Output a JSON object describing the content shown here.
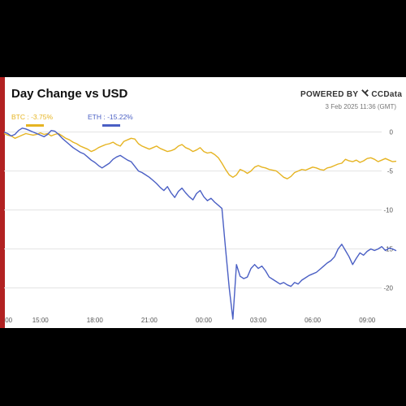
{
  "chart": {
    "title": "Day Change vs USD",
    "powered_by": "POWERED BY",
    "brand": "CCData",
    "timestamp": "3 Feb 2025 11:36 (GMT)"
  },
  "colors": {
    "btc": "#e6b422",
    "eth": "#4a5fc4",
    "accent": "#b22222"
  },
  "chart_data": {
    "type": "line",
    "title": "Day Change vs USD",
    "xlabel": "",
    "ylabel": "",
    "x_ticks": [
      ":00",
      "15:00",
      "18:00",
      "21:00",
      "00:00",
      "03:00",
      "06:00",
      "09:00"
    ],
    "y_ticks": [
      0,
      -5,
      -10,
      -15,
      -20
    ],
    "ylim": [
      -24,
      1
    ],
    "grid": true,
    "legend": "top-left",
    "series": [
      {
        "name": "BTC : -3.75%",
        "color": "#e6b422",
        "points": [
          [
            13.0,
            -0.2
          ],
          [
            13.2,
            -0.4
          ],
          [
            13.4,
            -0.5
          ],
          [
            13.6,
            -0.8
          ],
          [
            13.8,
            -0.6
          ],
          [
            14.0,
            -0.4
          ],
          [
            14.2,
            -0.2
          ],
          [
            14.4,
            -0.3
          ],
          [
            14.6,
            -0.4
          ],
          [
            14.8,
            -0.3
          ],
          [
            15.0,
            -0.1
          ],
          [
            15.2,
            -0.3
          ],
          [
            15.4,
            -0.2
          ],
          [
            15.6,
            -0.5
          ],
          [
            15.8,
            -0.3
          ],
          [
            16.0,
            -0.2
          ],
          [
            16.2,
            -0.5
          ],
          [
            16.4,
            -0.8
          ],
          [
            16.6,
            -1.0
          ],
          [
            16.8,
            -1.3
          ],
          [
            17.0,
            -1.5
          ],
          [
            17.2,
            -1.8
          ],
          [
            17.4,
            -2.0
          ],
          [
            17.6,
            -2.2
          ],
          [
            17.8,
            -2.5
          ],
          [
            18.0,
            -2.3
          ],
          [
            18.2,
            -2.0
          ],
          [
            18.4,
            -1.8
          ],
          [
            18.6,
            -1.6
          ],
          [
            18.8,
            -1.5
          ],
          [
            19.0,
            -1.3
          ],
          [
            19.2,
            -1.6
          ],
          [
            19.4,
            -1.8
          ],
          [
            19.6,
            -1.2
          ],
          [
            19.8,
            -1.0
          ],
          [
            20.0,
            -0.8
          ],
          [
            20.2,
            -0.9
          ],
          [
            20.4,
            -1.5
          ],
          [
            20.6,
            -1.8
          ],
          [
            20.8,
            -2.0
          ],
          [
            21.0,
            -2.2
          ],
          [
            21.2,
            -2.0
          ],
          [
            21.4,
            -1.8
          ],
          [
            21.6,
            -2.1
          ],
          [
            21.8,
            -2.3
          ],
          [
            22.0,
            -2.5
          ],
          [
            22.2,
            -2.4
          ],
          [
            22.4,
            -2.2
          ],
          [
            22.6,
            -1.8
          ],
          [
            22.8,
            -1.6
          ],
          [
            23.0,
            -2.0
          ],
          [
            23.2,
            -2.2
          ],
          [
            23.4,
            -2.5
          ],
          [
            23.6,
            -2.3
          ],
          [
            23.8,
            -2.0
          ],
          [
            24.0,
            -2.5
          ],
          [
            24.2,
            -2.7
          ],
          [
            24.4,
            -2.6
          ],
          [
            24.6,
            -2.9
          ],
          [
            24.8,
            -3.3
          ],
          [
            25.0,
            -4.0
          ],
          [
            25.2,
            -4.8
          ],
          [
            25.4,
            -5.5
          ],
          [
            25.6,
            -5.8
          ],
          [
            25.8,
            -5.5
          ],
          [
            26.0,
            -4.8
          ],
          [
            26.2,
            -5.0
          ],
          [
            26.4,
            -5.3
          ],
          [
            26.6,
            -5.0
          ],
          [
            26.8,
            -4.5
          ],
          [
            27.0,
            -4.3
          ],
          [
            27.2,
            -4.5
          ],
          [
            27.4,
            -4.6
          ],
          [
            27.6,
            -4.8
          ],
          [
            27.8,
            -4.9
          ],
          [
            28.0,
            -5.0
          ],
          [
            28.2,
            -5.4
          ],
          [
            28.4,
            -5.8
          ],
          [
            28.6,
            -6.0
          ],
          [
            28.8,
            -5.7
          ],
          [
            29.0,
            -5.2
          ],
          [
            29.2,
            -5.0
          ],
          [
            29.4,
            -4.8
          ],
          [
            29.6,
            -4.9
          ],
          [
            29.8,
            -4.7
          ],
          [
            30.0,
            -4.5
          ],
          [
            30.2,
            -4.6
          ],
          [
            30.4,
            -4.8
          ],
          [
            30.6,
            -4.9
          ],
          [
            30.8,
            -4.6
          ],
          [
            31.0,
            -4.5
          ],
          [
            31.2,
            -4.3
          ],
          [
            31.4,
            -4.1
          ],
          [
            31.6,
            -4.0
          ],
          [
            31.8,
            -3.5
          ],
          [
            32.0,
            -3.7
          ],
          [
            32.2,
            -3.8
          ],
          [
            32.4,
            -3.6
          ],
          [
            32.6,
            -3.9
          ],
          [
            32.8,
            -3.7
          ],
          [
            33.0,
            -3.4
          ],
          [
            33.2,
            -3.3
          ],
          [
            33.4,
            -3.5
          ],
          [
            33.6,
            -3.8
          ],
          [
            33.8,
            -3.6
          ],
          [
            34.0,
            -3.4
          ],
          [
            34.2,
            -3.6
          ],
          [
            34.4,
            -3.8
          ],
          [
            34.6,
            -3.75
          ]
        ]
      },
      {
        "name": "ETH : -15.22%",
        "color": "#4a5fc4",
        "points": [
          [
            13.0,
            0.0
          ],
          [
            13.2,
            -0.2
          ],
          [
            13.4,
            -0.5
          ],
          [
            13.6,
            -0.3
          ],
          [
            13.8,
            0.2
          ],
          [
            14.0,
            0.5
          ],
          [
            14.2,
            0.4
          ],
          [
            14.4,
            0.2
          ],
          [
            14.6,
            0.0
          ],
          [
            14.8,
            -0.2
          ],
          [
            15.0,
            -0.4
          ],
          [
            15.2,
            -0.6
          ],
          [
            15.4,
            -0.3
          ],
          [
            15.6,
            0.2
          ],
          [
            15.8,
            0.1
          ],
          [
            16.0,
            -0.3
          ],
          [
            16.2,
            -0.8
          ],
          [
            16.4,
            -1.2
          ],
          [
            16.6,
            -1.6
          ],
          [
            16.8,
            -2.0
          ],
          [
            17.0,
            -2.3
          ],
          [
            17.2,
            -2.6
          ],
          [
            17.4,
            -2.8
          ],
          [
            17.6,
            -3.2
          ],
          [
            17.8,
            -3.6
          ],
          [
            18.0,
            -3.9
          ],
          [
            18.2,
            -4.3
          ],
          [
            18.4,
            -4.6
          ],
          [
            18.6,
            -4.3
          ],
          [
            18.8,
            -4.0
          ],
          [
            19.0,
            -3.5
          ],
          [
            19.2,
            -3.2
          ],
          [
            19.4,
            -3.0
          ],
          [
            19.6,
            -3.3
          ],
          [
            19.8,
            -3.6
          ],
          [
            20.0,
            -3.8
          ],
          [
            20.2,
            -4.4
          ],
          [
            20.4,
            -5.0
          ],
          [
            20.6,
            -5.2
          ],
          [
            20.8,
            -5.5
          ],
          [
            21.0,
            -5.8
          ],
          [
            21.2,
            -6.2
          ],
          [
            21.4,
            -6.6
          ],
          [
            21.6,
            -7.1
          ],
          [
            21.8,
            -7.5
          ],
          [
            22.0,
            -7.0
          ],
          [
            22.2,
            -7.8
          ],
          [
            22.4,
            -8.4
          ],
          [
            22.6,
            -7.6
          ],
          [
            22.8,
            -7.2
          ],
          [
            23.0,
            -7.8
          ],
          [
            23.2,
            -8.3
          ],
          [
            23.4,
            -8.7
          ],
          [
            23.6,
            -7.9
          ],
          [
            23.8,
            -7.5
          ],
          [
            24.0,
            -8.3
          ],
          [
            24.2,
            -8.8
          ],
          [
            24.4,
            -8.5
          ],
          [
            24.6,
            -9.0
          ],
          [
            24.8,
            -9.4
          ],
          [
            25.0,
            -9.8
          ],
          [
            25.2,
            -15.0
          ],
          [
            25.4,
            -20.0
          ],
          [
            25.6,
            -24.0
          ],
          [
            25.8,
            -17.0
          ],
          [
            26.0,
            -18.5
          ],
          [
            26.2,
            -18.8
          ],
          [
            26.4,
            -18.6
          ],
          [
            26.6,
            -17.5
          ],
          [
            26.8,
            -17.0
          ],
          [
            27.0,
            -17.5
          ],
          [
            27.2,
            -17.2
          ],
          [
            27.4,
            -17.8
          ],
          [
            27.6,
            -18.6
          ],
          [
            27.8,
            -18.9
          ],
          [
            28.0,
            -19.2
          ],
          [
            28.2,
            -19.5
          ],
          [
            28.4,
            -19.3
          ],
          [
            28.6,
            -19.6
          ],
          [
            28.8,
            -19.8
          ],
          [
            29.0,
            -19.3
          ],
          [
            29.2,
            -19.5
          ],
          [
            29.4,
            -19.0
          ],
          [
            29.6,
            -18.7
          ],
          [
            29.8,
            -18.4
          ],
          [
            30.0,
            -18.2
          ],
          [
            30.2,
            -18.0
          ],
          [
            30.4,
            -17.6
          ],
          [
            30.6,
            -17.2
          ],
          [
            30.8,
            -16.8
          ],
          [
            31.0,
            -16.5
          ],
          [
            31.2,
            -16.0
          ],
          [
            31.4,
            -15.0
          ],
          [
            31.6,
            -14.4
          ],
          [
            31.8,
            -15.2
          ],
          [
            32.0,
            -16.0
          ],
          [
            32.2,
            -17.0
          ],
          [
            32.4,
            -16.2
          ],
          [
            32.6,
            -15.5
          ],
          [
            32.8,
            -15.8
          ],
          [
            33.0,
            -15.3
          ],
          [
            33.2,
            -15.0
          ],
          [
            33.4,
            -15.2
          ],
          [
            33.6,
            -15.0
          ],
          [
            33.8,
            -14.7
          ],
          [
            34.0,
            -15.2
          ],
          [
            34.2,
            -14.9
          ],
          [
            34.4,
            -15.0
          ],
          [
            34.6,
            -15.22
          ]
        ]
      }
    ]
  }
}
